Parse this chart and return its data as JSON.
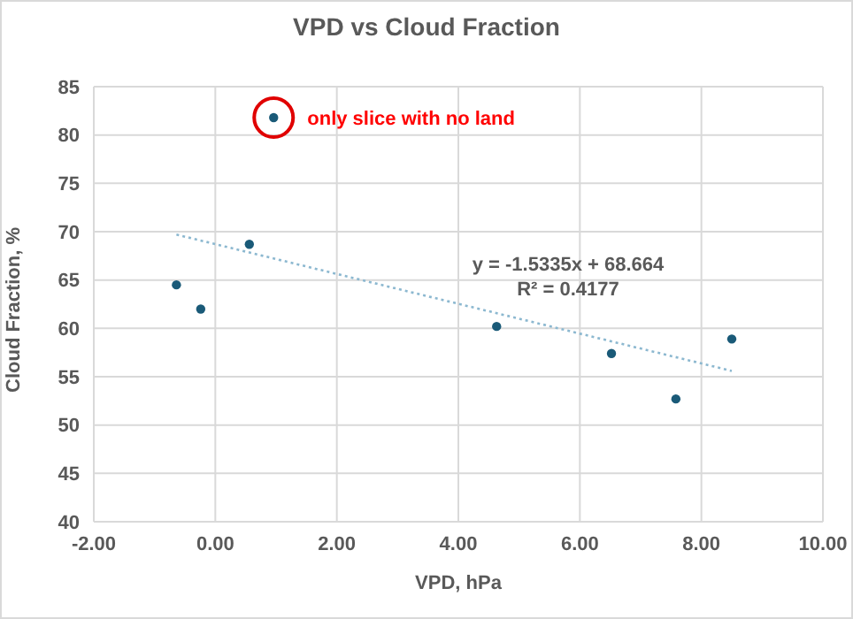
{
  "chart_data": {
    "type": "scatter",
    "title": "VPD vs Cloud Fraction",
    "xlabel": "VPD, hPa",
    "ylabel": "Cloud Fraction, %",
    "series": [
      {
        "color": "#1a5a78",
        "x": [
          -0.64,
          -0.24,
          0.56,
          0.96,
          4.63,
          6.52,
          7.58,
          8.5
        ],
        "values": [
          64.5,
          62,
          68.7,
          81.8,
          60.2,
          57.4,
          52.7,
          58.9
        ]
      },
      {
        "type": "line",
        "color": "#8cb8d0",
        "x": [
          -0.64,
          8.5
        ],
        "values": [
          69.7,
          55.6
        ],
        "line_style": "dotted",
        "marker": "none"
      }
    ],
    "annotations": [
      {
        "text": "only slice with no land",
        "x": 0.96,
        "y": 81.8
      },
      "y = -1.5335x + 68.664",
      "R² = 0.4177"
    ],
    "xlim": [
      -2,
      10
    ],
    "xticks": [
      {
        "value": -2,
        "label": "-2.00"
      },
      {
        "value": 0,
        "label": "0.00"
      },
      {
        "value": 2,
        "label": "2.00"
      },
      {
        "value": 4,
        "label": "4.00"
      },
      {
        "value": 6,
        "label": "6.00"
      },
      {
        "value": 8,
        "label": "8.00"
      },
      {
        "value": 10,
        "label": "10.00"
      }
    ],
    "ylim": [
      40,
      85
    ],
    "yticks": [
      40,
      45,
      50,
      55,
      60,
      65,
      70,
      75,
      80,
      85
    ],
    "grid": true,
    "legend": false,
    "marker": "circle"
  }
}
